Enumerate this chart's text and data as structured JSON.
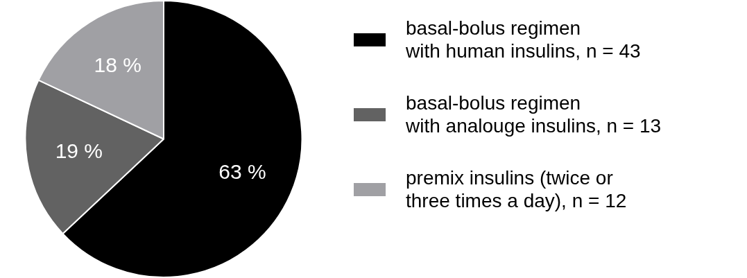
{
  "chart_data": {
    "type": "pie",
    "categories": [
      "basal-bolus regimen\nwith human insulins, n = 43",
      "basal-bolus regimen\nwith analouge insulins, n = 13",
      "premix insulins (twice or\nthree times a day), n = 12"
    ],
    "values": [
      63,
      19,
      18
    ],
    "colors": [
      "#000000",
      "#626262",
      "#a0a0a4"
    ],
    "value_labels": [
      "63 %",
      "19 %",
      "18 %"
    ],
    "legend": "right"
  }
}
